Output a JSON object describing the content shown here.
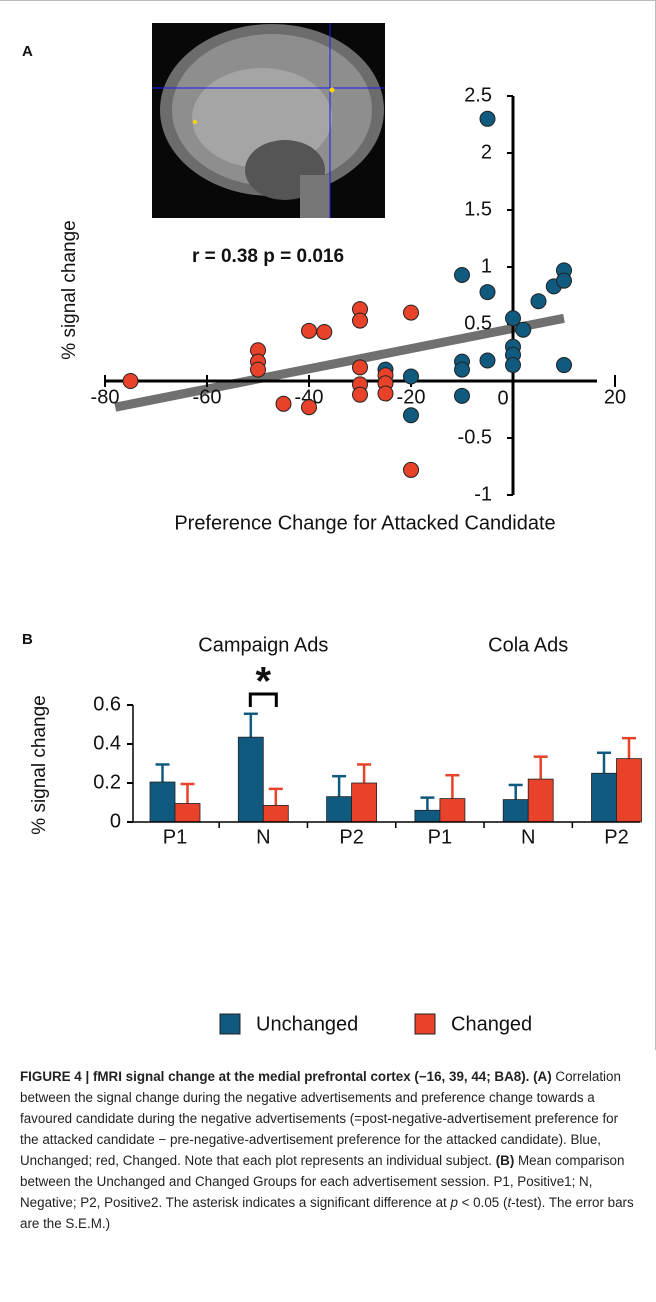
{
  "chart_data": [
    {
      "type": "scatter",
      "panel_label": "A",
      "annotation": "r = 0.38 p = 0.016",
      "x_label": "Preference Change for Attacked Candidate",
      "y_label": "% signal change",
      "xlim": [
        -80,
        20
      ],
      "ylim": [
        -1,
        2.5
      ],
      "xticks": [
        -80,
        -60,
        -40,
        -20,
        20
      ],
      "yticks": [
        2.5,
        2,
        1.5,
        1,
        0.5,
        0,
        -0.5,
        -1
      ],
      "series": [
        {
          "color": "#0f5a7e",
          "x": [
            -5,
            -10,
            -5,
            0,
            2,
            5,
            8,
            10,
            10,
            10,
            0,
            0,
            0,
            -10,
            -10,
            -10,
            -5,
            -25,
            -20,
            -20
          ],
          "y": [
            2.3,
            0.93,
            0.78,
            0.55,
            0.45,
            0.7,
            0.83,
            0.97,
            0.88,
            0.14,
            0.3,
            0.23,
            0.14,
            0.17,
            0.1,
            -0.13,
            0.18,
            0.1,
            0.04,
            -0.3
          ]
        },
        {
          "color": "#e8422a",
          "x": [
            -75,
            -50,
            -50,
            -50,
            -45,
            -40,
            -40,
            -37,
            -30,
            -30,
            -30,
            -30,
            -30,
            -25,
            -25,
            -25,
            -20,
            -20
          ],
          "y": [
            0,
            0.27,
            0.17,
            0.1,
            -0.2,
            -0.23,
            0.44,
            0.43,
            0.63,
            0.53,
            0.12,
            -0.03,
            -0.12,
            0.05,
            -0.02,
            -0.11,
            0.6,
            -0.78
          ]
        }
      ],
      "trend_line": {
        "color": "#707070",
        "x": [
          -78,
          10
        ],
        "y": [
          -0.23,
          0.55
        ]
      }
    },
    {
      "type": "bar",
      "panel_label": "B",
      "y_label": "% signal change",
      "group_labels": [
        "Campaign Ads",
        "Cola Ads"
      ],
      "annotation": "*",
      "categories": [
        "P1",
        "N",
        "P2",
        "P1",
        "N",
        "P2"
      ],
      "ylim": [
        0,
        0.6
      ],
      "yticks": [
        0,
        0.2,
        0.4,
        0.6
      ],
      "series": [
        {
          "name": "Unchanged",
          "color": "#0f5a7e",
          "values": [
            0.205,
            0.435,
            0.13,
            0.06,
            0.115,
            0.25
          ],
          "errors": [
            0.09,
            0.12,
            0.105,
            0.065,
            0.075,
            0.105
          ]
        },
        {
          "name": "Changed",
          "color": "#e8422a",
          "values": [
            0.095,
            0.085,
            0.2,
            0.12,
            0.22,
            0.325
          ],
          "errors": [
            0.1,
            0.085,
            0.095,
            0.12,
            0.115,
            0.105
          ]
        }
      ]
    }
  ],
  "caption": [
    {
      "style": "bold",
      "text": "FIGURE 4 | fMRI signal change at the medial prefrontal cortex (−16, 39, 44; BA8). (A)"
    },
    {
      "style": "normal",
      "text": " Correlation between the signal change during the negative advertisements and preference change towards a favoured candidate during the negative advertisements (=post-negative-advertisement preference for the attacked candidate − pre-negative-advertisement preference for the attacked candidate). Blue, Unchanged; red, Changed. Note that each plot represents an individual subject. "
    },
    {
      "style": "bold",
      "text": "(B)"
    },
    {
      "style": "normal",
      "text": " Mean comparison between the Unchanged and Changed Groups for each advertisement session. P1, Positive1; N, Negative; P2, Positive2. The asterisk indicates a significant difference at "
    },
    {
      "style": "italic",
      "text": "p"
    },
    {
      "style": "normal",
      "text": " < 0.05 ("
    },
    {
      "style": "italic",
      "text": "t"
    },
    {
      "style": "normal",
      "text": "-test). The error bars are the S.E.M.)"
    }
  ]
}
